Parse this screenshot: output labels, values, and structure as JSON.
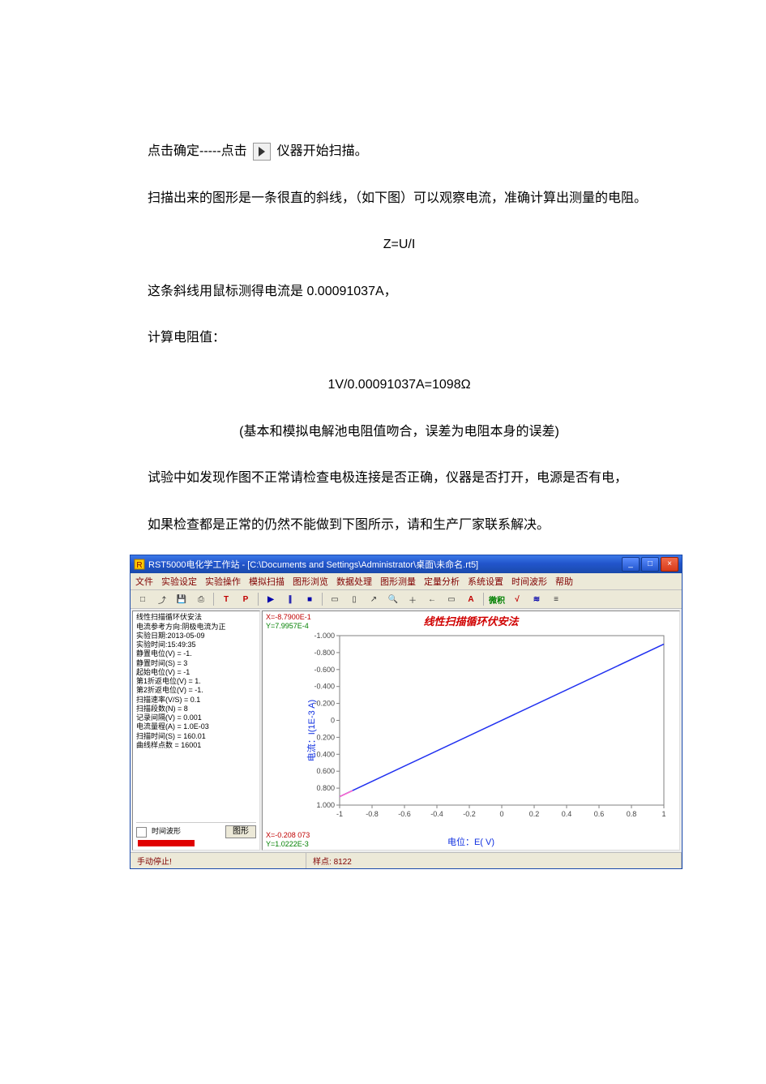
{
  "doc": {
    "para1_before": "点击确定-----点击",
    "para1_after": " 仪器开始扫描。",
    "para2": "扫描出来的图形是一条很直的斜线，（如下图）可以观察电流，准确计算出测量的电阻。",
    "formula1": "Z=U/I",
    "para3": "这条斜线用鼠标测得电流是 0.00091037A，",
    "para4": "计算电阻值：",
    "formula2": "1V/0.00091037A=1098Ω",
    "para5": "(基本和模拟电解池电阻值吻合，误差为电阻本身的误差)",
    "para6": "试验中如发现作图不正常请检查电极连接是否正确，仪器是否打开，电源是否有电，",
    "para7": "如果检查都是正常的仍然不能做到下图所示，请和生产厂家联系解决。"
  },
  "window": {
    "title": "RST5000电化学工作站 - [C:\\Documents and Settings\\Administrator\\桌面\\未命名.rt5]",
    "titlebar_color_top": "#3b78e7",
    "titlebar_color_bottom": "#1a4aab",
    "icon_color": "#ffcc00",
    "menus": [
      "文件",
      "实验设定",
      "实验操作",
      "模拟扫描",
      "图形浏览",
      "数据处理",
      "图形测量",
      "定量分析",
      "系统设置",
      "时间波形",
      "帮助"
    ],
    "tool_text": {
      "new": "□",
      "open": "⤴",
      "save": "💾",
      "print": "⎙",
      "T": "T",
      "P": "P",
      "play": "▶",
      "pause": "∥",
      "stop": "■",
      "rect1": "▭",
      "rect2": "▯",
      "arrow": "↗",
      "mag": "🔍",
      "plus": "＋",
      "minus": "←",
      "A": "A",
      "cn1": "微积",
      "cn2": "√",
      "sci": "≋",
      "end": "≡"
    }
  },
  "side": {
    "lines": "线性扫描循环伏安法\n电流参考方向:阴极电流为正\n实验日期:2013-05-09\n实验时间:15:49:35\n静置电位(V) = -1.\n静置时间(S) = 3\n起始电位(V) = -1\n第1折返电位(V) = 1.\n第2折返电位(V) = -1.\n扫描速率(V/S) = 0.1\n扫描段数(N) = 8\n记录间隔(V) = 0.001\n电流量程(A) = 1.0E-03\n扫描时间(S) = 160.01\n曲线样点数 = 16001",
    "checkbox_label": "时间波形",
    "button_label": "图形"
  },
  "chart": {
    "title": "线性扫描循环伏安法",
    "title_color": "#d00000",
    "ylabel": "电流：I(1E-3 A)",
    "xlabel": "电位：E( V)",
    "axis_label_color": "#1030e0",
    "line_color": "#2030f0",
    "border_color": "#808080",
    "xlim": [
      -1,
      1
    ],
    "ylim_top": -1.0,
    "ylim_bottom": 1.0,
    "xticks": [
      -1,
      -0.8,
      -0.6,
      -0.4,
      -0.2,
      0,
      0.2,
      0.4,
      0.6,
      0.8,
      1
    ],
    "yticks": [
      -1.0,
      -0.8,
      -0.6,
      -0.4,
      -0.2,
      0,
      0.2,
      0.4,
      0.6,
      0.8,
      1.0
    ],
    "yticks_labels": [
      "-1.000",
      "-0.800",
      "-0.600",
      "-0.400",
      "-0.200",
      "0",
      "0.200",
      "0.400",
      "0.600",
      "0.800",
      "1.000"
    ],
    "line": {
      "x1": -1,
      "y1": 0.9,
      "x2": 1,
      "y2": -0.9
    },
    "top_coord_x": "X=-8.7900E-1",
    "top_coord_y": "Y=7.9957E-4",
    "bot_coord_x": "X=-0.208 073",
    "bot_coord_y": "Y=1.0222E-3"
  },
  "status": {
    "left": "手动停止!",
    "right_label": "样点:",
    "right_value": "8122"
  }
}
